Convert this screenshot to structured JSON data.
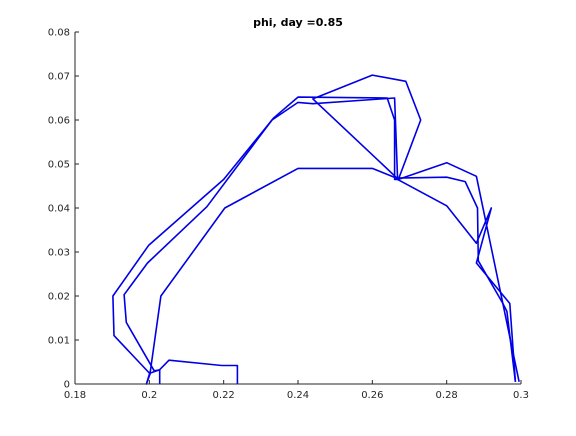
{
  "chart_data": {
    "type": "line",
    "title": "phi, day =0.85",
    "xlabel": "",
    "ylabel": "",
    "xlim": [
      0.18,
      0.3
    ],
    "ylim": [
      0,
      0.08
    ],
    "xticks": [
      0.18,
      0.2,
      0.22,
      0.24,
      0.26,
      0.28,
      0.3
    ],
    "yticks": [
      0,
      0.01,
      0.02,
      0.03,
      0.04,
      0.05,
      0.06,
      0.07,
      0.08
    ],
    "xtick_labels": [
      "0.18",
      "0.2",
      "0.22",
      "0.24",
      "0.26",
      "0.28",
      "0.3"
    ],
    "ytick_labels": [
      "0",
      "0.01",
      "0.02",
      "0.03",
      "0.04",
      "0.05",
      "0.06",
      "0.07",
      "0.08"
    ],
    "grid": false,
    "series": [
      {
        "color": "#0000e6",
        "x": [
          0.2237,
          0.2237,
          0.2195,
          0.2053,
          0.2027,
          0.2003,
          0.1992,
          0.2003,
          0.2031,
          0.2203,
          0.24,
          0.26,
          0.2665,
          0.28,
          0.285,
          0.2883,
          0.2885,
          0.295,
          0.2962,
          0.2985
        ],
        "y": [
          0,
          0.0042,
          0.0042,
          0.0054,
          0.0032,
          0.0025,
          0.0,
          0.003,
          0.02,
          0.04,
          0.049,
          0.049,
          0.0468,
          0.047,
          0.046,
          0.04,
          0.028,
          0.0185,
          0.0165,
          0.0005
        ]
      },
      {
        "color": "#0000e6",
        "x": [
          0.2028,
          0.2028,
          0.2013,
          0.1938,
          0.1932,
          0.1995,
          0.2155,
          0.233,
          0.24,
          0.244,
          0.266,
          0.2668,
          0.28,
          0.288,
          0.292,
          0.288,
          0.297,
          0.2985
        ],
        "y": [
          0,
          0.0032,
          0.003,
          0.014,
          0.0203,
          0.0275,
          0.0403,
          0.06,
          0.064,
          0.0637,
          0.065,
          0.0465,
          0.0405,
          0.032,
          0.04,
          0.0275,
          0.0183,
          0.0005
        ]
      },
      {
        "color": "#0000e6",
        "x": [
          0.2,
          0.1905,
          0.1902,
          0.1998,
          0.22,
          0.2335,
          0.24,
          0.264,
          0.266,
          0.266,
          0.267,
          0.273,
          0.269,
          0.26,
          0.244,
          0.267,
          0.28,
          0.288,
          0.295,
          0.2995
        ],
        "y": [
          0.0025,
          0.011,
          0.02,
          0.0315,
          0.0465,
          0.0605,
          0.0652,
          0.065,
          0.06,
          0.0465,
          0.0465,
          0.06,
          0.0688,
          0.0702,
          0.0648,
          0.0465,
          0.0503,
          0.0472,
          0.0188,
          0.0005
        ]
      }
    ]
  }
}
